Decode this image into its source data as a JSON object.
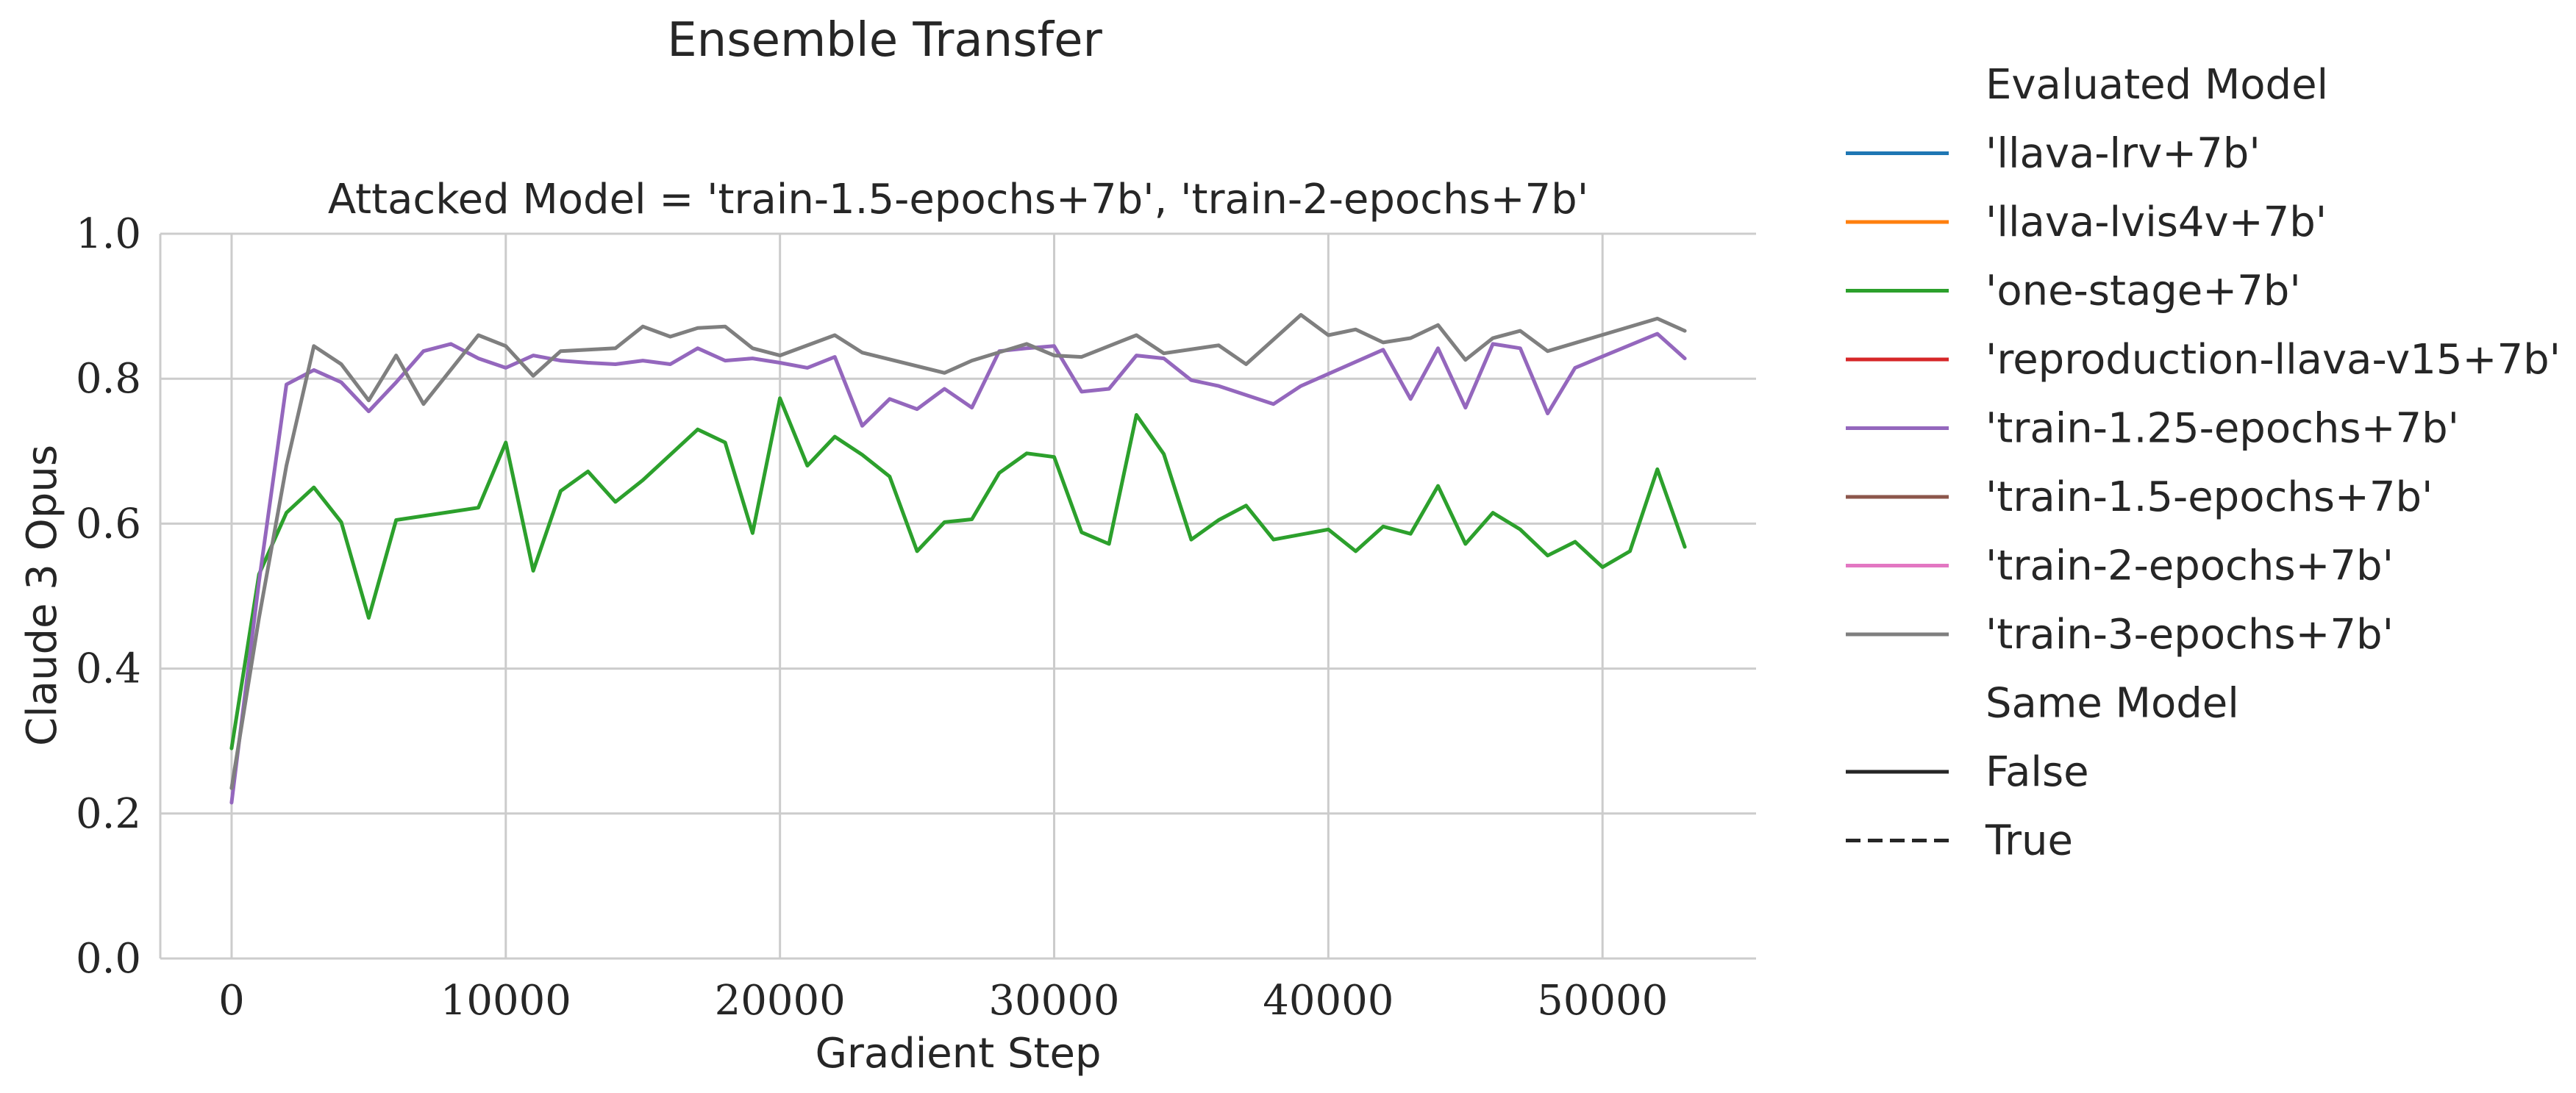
{
  "chart_data": {
    "type": "line",
    "title": "Ensemble Transfer",
    "subtitle": "Attacked Model = 'train-1.5-epochs+7b', 'train-2-epochs+7b'",
    "xlabel": "Gradient Step",
    "ylabel": "Claude 3 Opus",
    "xlim": [
      -2600,
      55600
    ],
    "ylim": [
      0,
      1.0
    ],
    "xticks": [
      0,
      10000,
      20000,
      30000,
      40000,
      50000
    ],
    "yticks": [
      0.0,
      0.2,
      0.4,
      0.6,
      0.8,
      1.0
    ],
    "xtick_labels": [
      "0",
      "10000",
      "20000",
      "30000",
      "40000",
      "50000"
    ],
    "ytick_labels": [
      "0.0",
      "0.2",
      "0.4",
      "0.6",
      "0.8",
      "1.0"
    ],
    "grid": true,
    "legend_placement": "outside right",
    "legend": {
      "title": "Evaluated Model",
      "entries": [
        {
          "label": "'llava-lrv+7b'",
          "color": "#1f77b4"
        },
        {
          "label": "'llava-lvis4v+7b'",
          "color": "#ff7f0e"
        },
        {
          "label": "'one-stage+7b'",
          "color": "#2ca02c"
        },
        {
          "label": "'reproduction-llava-v15+7b'",
          "color": "#d62728"
        },
        {
          "label": "'train-1.25-epochs+7b'",
          "color": "#9467bd"
        },
        {
          "label": "'train-1.5-epochs+7b'",
          "color": "#8c564b"
        },
        {
          "label": "'train-2-epochs+7b'",
          "color": "#e377c2"
        },
        {
          "label": "'train-3-epochs+7b'",
          "color": "#7f7f7f"
        }
      ],
      "style_title": "Same Model",
      "style_entries": [
        {
          "label": "False",
          "dash": "solid"
        },
        {
          "label": "True",
          "dash": "dashed"
        }
      ]
    },
    "series": [
      {
        "name": "'one-stage+7b'",
        "color": "#2ca02c",
        "x": [
          0,
          1000,
          2000,
          3000,
          4000,
          5000,
          6000,
          9000,
          10000,
          11000,
          12000,
          13000,
          14000,
          15000,
          16000,
          17000,
          18000,
          19000,
          20000,
          21000,
          22000,
          23000,
          24000,
          25000,
          26000,
          27000,
          28000,
          29000,
          30000,
          31000,
          32000,
          33000,
          34000,
          35000,
          36000,
          37000,
          38000,
          40000,
          41000,
          42000,
          43000,
          44000,
          45000,
          46000,
          47000,
          48000,
          49000,
          50000,
          51000,
          52000,
          53000
        ],
        "y": [
          0.29,
          0.53,
          0.615,
          0.65,
          0.602,
          0.47,
          0.605,
          0.622,
          0.712,
          0.535,
          0.645,
          0.672,
          0.63,
          0.66,
          0.695,
          0.73,
          0.712,
          0.587,
          0.773,
          0.68,
          0.72,
          0.695,
          0.665,
          0.562,
          0.602,
          0.606,
          0.67,
          0.697,
          0.692,
          0.588,
          0.572,
          0.75,
          0.696,
          0.578,
          0.605,
          0.625,
          0.578,
          0.592,
          0.562,
          0.596,
          0.586,
          0.652,
          0.572,
          0.615,
          0.592,
          0.556,
          0.575,
          0.54,
          0.562,
          0.675,
          0.568
        ]
      },
      {
        "name": "'train-1.25-epochs+7b'",
        "color": "#9467bd",
        "x": [
          0,
          1000,
          2000,
          3000,
          4000,
          5000,
          6000,
          7000,
          8000,
          9000,
          10000,
          11000,
          12000,
          13000,
          14000,
          15000,
          16000,
          17000,
          18000,
          19000,
          20000,
          21000,
          22000,
          23000,
          24000,
          25000,
          26000,
          27000,
          28000,
          29000,
          30000,
          31000,
          32000,
          33000,
          34000,
          35000,
          36000,
          38000,
          39000,
          42000,
          43000,
          44000,
          45000,
          46000,
          47000,
          48000,
          49000,
          52000,
          53000
        ],
        "y": [
          0.215,
          0.52,
          0.792,
          0.812,
          0.795,
          0.755,
          0.795,
          0.838,
          0.848,
          0.828,
          0.815,
          0.832,
          0.825,
          0.822,
          0.82,
          0.825,
          0.82,
          0.842,
          0.825,
          0.828,
          0.822,
          0.815,
          0.83,
          0.735,
          0.772,
          0.758,
          0.786,
          0.76,
          0.838,
          0.842,
          0.845,
          0.782,
          0.786,
          0.832,
          0.828,
          0.798,
          0.79,
          0.765,
          0.79,
          0.84,
          0.772,
          0.842,
          0.76,
          0.848,
          0.842,
          0.752,
          0.815,
          0.862,
          0.828
        ]
      },
      {
        "name": "'train-3-epochs+7b'",
        "color": "#7f7f7f",
        "x": [
          0,
          1000,
          2000,
          3000,
          4000,
          5000,
          6000,
          7000,
          9000,
          10000,
          11000,
          12000,
          14000,
          15000,
          16000,
          17000,
          18000,
          19000,
          20000,
          22000,
          23000,
          26000,
          27000,
          29000,
          30000,
          31000,
          33000,
          34000,
          36000,
          37000,
          39000,
          40000,
          41000,
          42000,
          43000,
          44000,
          45000,
          46000,
          47000,
          48000,
          52000,
          53000
        ],
        "y": [
          0.235,
          0.47,
          0.68,
          0.845,
          0.82,
          0.77,
          0.832,
          0.765,
          0.86,
          0.845,
          0.804,
          0.838,
          0.842,
          0.872,
          0.858,
          0.87,
          0.872,
          0.842,
          0.832,
          0.86,
          0.836,
          0.808,
          0.825,
          0.848,
          0.832,
          0.83,
          0.86,
          0.835,
          0.846,
          0.82,
          0.888,
          0.86,
          0.868,
          0.85,
          0.856,
          0.874,
          0.826,
          0.856,
          0.866,
          0.838,
          0.883,
          0.866
        ]
      }
    ]
  }
}
